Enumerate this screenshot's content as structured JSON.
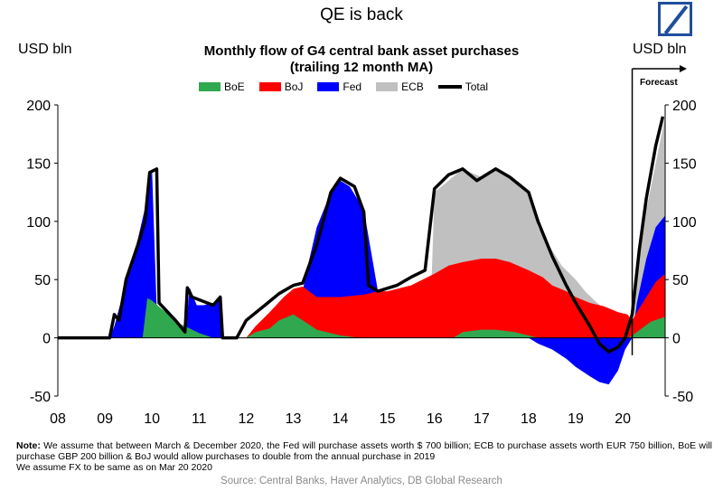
{
  "page_title": "QE is back",
  "logo": {
    "name": "deutsche-bank-logo",
    "color": "#1f4e9c"
  },
  "chart_data": {
    "type": "area",
    "title": "Monthly flow of G4 central bank asset purchases",
    "subtitle": "(trailing 12 month MA)",
    "ylabel_left": "USD bln",
    "ylabel_right": "USD bln",
    "ylim": [
      -50,
      200
    ],
    "yticks": [
      -50,
      0,
      50,
      100,
      150,
      200
    ],
    "xtick_labels": [
      "08",
      "09",
      "10",
      "11",
      "12",
      "13",
      "14",
      "15",
      "16",
      "17",
      "18",
      "19",
      "20"
    ],
    "x_range": [
      2008.0,
      2020.9
    ],
    "forecast_start": 2020.2,
    "forecast_label": "Forecast",
    "grid": false,
    "legend_position": "top",
    "stacked": true,
    "colors": {
      "BoE": "#2fa84f",
      "BoJ": "#ff0000",
      "Fed": "#0000ff",
      "ECB": "#c0c0c0",
      "Total": "#000000"
    },
    "series": [
      {
        "name": "BoE",
        "points": [
          [
            2008.0,
            0
          ],
          [
            2009.1,
            0
          ],
          [
            2009.3,
            0
          ],
          [
            2009.5,
            0
          ],
          [
            2009.8,
            0
          ],
          [
            2009.9,
            34
          ],
          [
            2010.0,
            32
          ],
          [
            2010.2,
            25
          ],
          [
            2010.6,
            12
          ],
          [
            2011.0,
            4
          ],
          [
            2011.3,
            0
          ],
          [
            2012.0,
            0
          ],
          [
            2012.2,
            5
          ],
          [
            2012.5,
            8
          ],
          [
            2012.7,
            15
          ],
          [
            2013.0,
            20
          ],
          [
            2013.2,
            15
          ],
          [
            2013.5,
            7
          ],
          [
            2014.0,
            2
          ],
          [
            2014.4,
            0
          ],
          [
            2016.4,
            0
          ],
          [
            2016.6,
            5
          ],
          [
            2017.0,
            7
          ],
          [
            2017.3,
            7
          ],
          [
            2017.7,
            5
          ],
          [
            2018.0,
            2
          ],
          [
            2018.2,
            0
          ],
          [
            2020.1,
            0
          ],
          [
            2020.2,
            2
          ],
          [
            2020.4,
            8
          ],
          [
            2020.6,
            14
          ],
          [
            2020.9,
            18
          ]
        ]
      },
      {
        "name": "BoJ",
        "points": [
          [
            2008.0,
            0
          ],
          [
            2011.3,
            0
          ],
          [
            2011.5,
            0
          ],
          [
            2012.0,
            0
          ],
          [
            2012.2,
            10
          ],
          [
            2012.5,
            22
          ],
          [
            2012.8,
            35
          ],
          [
            2013.0,
            42
          ],
          [
            2013.2,
            44
          ],
          [
            2013.5,
            35
          ],
          [
            2014.0,
            35
          ],
          [
            2014.5,
            37
          ],
          [
            2014.8,
            40
          ],
          [
            2015.0,
            40
          ],
          [
            2015.5,
            45
          ],
          [
            2016.0,
            55
          ],
          [
            2016.3,
            62
          ],
          [
            2016.6,
            65
          ],
          [
            2017.0,
            68
          ],
          [
            2017.3,
            68
          ],
          [
            2017.6,
            65
          ],
          [
            2018.0,
            58
          ],
          [
            2018.3,
            52
          ],
          [
            2018.5,
            45
          ],
          [
            2018.8,
            40
          ],
          [
            2019.0,
            35
          ],
          [
            2019.3,
            30
          ],
          [
            2019.6,
            27
          ],
          [
            2019.9,
            22
          ],
          [
            2020.1,
            20
          ],
          [
            2020.2,
            15
          ],
          [
            2020.3,
            22
          ],
          [
            2020.5,
            35
          ],
          [
            2020.7,
            48
          ],
          [
            2020.9,
            55
          ]
        ]
      },
      {
        "name": "Fed",
        "points": [
          [
            2008.0,
            0
          ],
          [
            2009.1,
            0
          ],
          [
            2009.2,
            10
          ],
          [
            2009.3,
            25
          ],
          [
            2009.5,
            55
          ],
          [
            2009.7,
            85
          ],
          [
            2009.9,
            120
          ],
          [
            2010.0,
            145
          ],
          [
            2010.1,
            25
          ],
          [
            2010.3,
            15
          ],
          [
            2010.5,
            5
          ],
          [
            2010.7,
            0
          ],
          [
            2010.8,
            43
          ],
          [
            2010.95,
            28
          ],
          [
            2011.1,
            28
          ],
          [
            2011.3,
            30
          ],
          [
            2011.45,
            35
          ],
          [
            2011.5,
            0
          ],
          [
            2012.0,
            0
          ],
          [
            2012.8,
            0
          ],
          [
            2013.0,
            0
          ],
          [
            2013.3,
            60
          ],
          [
            2013.5,
            95
          ],
          [
            2013.8,
            125
          ],
          [
            2014.0,
            135
          ],
          [
            2014.2,
            130
          ],
          [
            2014.5,
            110
          ],
          [
            2014.8,
            40
          ],
          [
            2015.0,
            0
          ],
          [
            2018.0,
            0
          ],
          [
            2018.2,
            -5
          ],
          [
            2018.5,
            -10
          ],
          [
            2018.8,
            -18
          ],
          [
            2019.0,
            -25
          ],
          [
            2019.3,
            -33
          ],
          [
            2019.5,
            -38
          ],
          [
            2019.7,
            -40
          ],
          [
            2019.9,
            -28
          ],
          [
            2020.05,
            -10
          ],
          [
            2020.2,
            0
          ],
          [
            2020.3,
            30
          ],
          [
            2020.5,
            68
          ],
          [
            2020.7,
            95
          ],
          [
            2020.9,
            105
          ]
        ]
      },
      {
        "name": "ECB",
        "points": [
          [
            2008.0,
            0
          ],
          [
            2015.9,
            0
          ],
          [
            2016.0,
            125
          ],
          [
            2016.3,
            135
          ],
          [
            2016.6,
            145
          ],
          [
            2017.0,
            138
          ],
          [
            2017.3,
            145
          ],
          [
            2017.6,
            138
          ],
          [
            2018.0,
            125
          ],
          [
            2018.2,
            95
          ],
          [
            2018.5,
            75
          ],
          [
            2018.7,
            62
          ],
          [
            2019.0,
            50
          ],
          [
            2019.2,
            40
          ],
          [
            2019.4,
            32
          ],
          [
            2019.6,
            25
          ],
          [
            2019.9,
            15
          ],
          [
            2020.0,
            0
          ],
          [
            2020.2,
            0
          ],
          [
            2020.3,
            50
          ],
          [
            2020.5,
            110
          ],
          [
            2020.7,
            150
          ],
          [
            2020.9,
            190
          ]
        ]
      },
      {
        "name": "Total",
        "points": [
          [
            2008.0,
            0
          ],
          [
            2009.0,
            0
          ],
          [
            2009.1,
            0
          ],
          [
            2009.2,
            20
          ],
          [
            2009.3,
            15
          ],
          [
            2009.45,
            50
          ],
          [
            2009.7,
            80
          ],
          [
            2009.85,
            100
          ],
          [
            2009.95,
            142
          ],
          [
            2010.1,
            145
          ],
          [
            2010.15,
            30
          ],
          [
            2010.5,
            15
          ],
          [
            2010.7,
            5
          ],
          [
            2010.75,
            43
          ],
          [
            2010.85,
            35
          ],
          [
            2011.3,
            28
          ],
          [
            2011.45,
            35
          ],
          [
            2011.5,
            0
          ],
          [
            2011.8,
            0
          ],
          [
            2012.0,
            15
          ],
          [
            2012.4,
            28
          ],
          [
            2012.7,
            38
          ],
          [
            2013.0,
            45
          ],
          [
            2013.2,
            47
          ],
          [
            2013.5,
            80
          ],
          [
            2013.8,
            125
          ],
          [
            2014.0,
            137
          ],
          [
            2014.3,
            130
          ],
          [
            2014.5,
            108
          ],
          [
            2014.6,
            45
          ],
          [
            2014.8,
            40
          ],
          [
            2015.2,
            45
          ],
          [
            2015.5,
            52
          ],
          [
            2015.8,
            58
          ],
          [
            2016.0,
            128
          ],
          [
            2016.3,
            140
          ],
          [
            2016.6,
            145
          ],
          [
            2016.9,
            135
          ],
          [
            2017.3,
            145
          ],
          [
            2017.6,
            138
          ],
          [
            2018.0,
            125
          ],
          [
            2018.2,
            100
          ],
          [
            2018.5,
            70
          ],
          [
            2018.8,
            45
          ],
          [
            2019.0,
            30
          ],
          [
            2019.3,
            10
          ],
          [
            2019.5,
            -5
          ],
          [
            2019.7,
            -12
          ],
          [
            2019.9,
            -8
          ],
          [
            2020.05,
            0
          ],
          [
            2020.2,
            20
          ],
          [
            2020.35,
            75
          ],
          [
            2020.5,
            120
          ],
          [
            2020.7,
            165
          ],
          [
            2020.85,
            190
          ]
        ]
      }
    ]
  },
  "note": {
    "label": "Note:",
    "text": "We assume that between March & December 2020, the Fed will purchase assets worth $ 700 billion; ECB to purchase assets worth EUR 750 billion, BoE will purchase GBP 200 billion & BoJ would allow purchases to double from the annual purchase in 2019",
    "line2": "We assume FX to be same as on Mar 20 2020"
  },
  "source": "Source:  Central Banks, Haver Analytics, DB Global Research"
}
